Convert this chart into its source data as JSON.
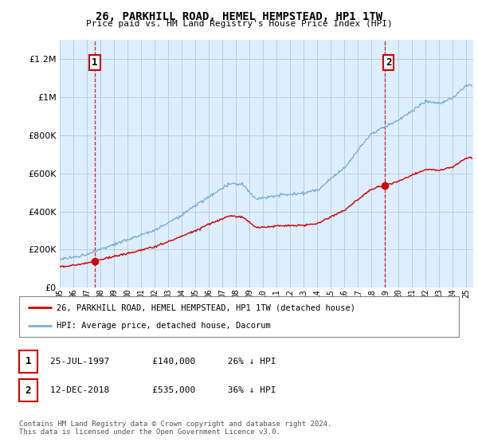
{
  "title": "26, PARKHILL ROAD, HEMEL HEMPSTEAD, HP1 1TW",
  "subtitle": "Price paid vs. HM Land Registry's House Price Index (HPI)",
  "ytick_values": [
    0,
    200000,
    400000,
    600000,
    800000,
    1000000,
    1200000
  ],
  "ylim": [
    0,
    1300000
  ],
  "xlim_start": 1995.0,
  "xlim_end": 2025.5,
  "hpi_color": "#7bafd4",
  "sale_color": "#cc0000",
  "sale1_x": 1997.57,
  "sale1_y": 140000,
  "sale2_x": 2018.95,
  "sale2_y": 535000,
  "annotation1_label": "1",
  "annotation2_label": "2",
  "legend_sale_label": "26, PARKHILL ROAD, HEMEL HEMPSTEAD, HP1 1TW (detached house)",
  "legend_hpi_label": "HPI: Average price, detached house, Dacorum",
  "table_rows": [
    {
      "num": "1",
      "date": "25-JUL-1997",
      "price": "£140,000",
      "info": "26% ↓ HPI"
    },
    {
      "num": "2",
      "date": "12-DEC-2018",
      "price": "£535,000",
      "info": "36% ↓ HPI"
    }
  ],
  "footer": "Contains HM Land Registry data © Crown copyright and database right 2024.\nThis data is licensed under the Open Government Licence v3.0.",
  "plot_bg_color": "#ddeeff",
  "fig_bg_color": "#ffffff",
  "grid_color": "#bbccdd",
  "vline_color": "#cc0000",
  "font_family": "monospace"
}
